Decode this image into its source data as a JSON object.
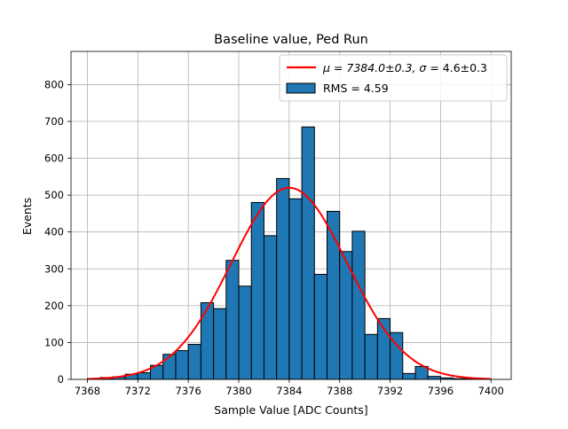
{
  "chart_data": {
    "type": "bar",
    "title": "Baseline value, Ped Run",
    "xlabel": "Sample Value [ADC Counts]",
    "ylabel": "Events",
    "xlim": [
      7366.7,
      7401.6
    ],
    "ylim": [
      0,
      890
    ],
    "x_ticks": [
      "7368",
      "7372",
      "7376",
      "7380",
      "7384",
      "7388",
      "7392",
      "7396",
      "7400"
    ],
    "y_ticks": [
      "0",
      "100",
      "200",
      "300",
      "400",
      "500",
      "600",
      "700",
      "800"
    ],
    "grid": true,
    "legend_position": "top-right",
    "histogram": {
      "name": "RMS = 4.59",
      "bin_edges": [
        7368,
        7369,
        7370,
        7371,
        7372,
        7373,
        7374,
        7375,
        7376,
        7377,
        7378,
        7379,
        7380,
        7381,
        7382,
        7383,
        7384,
        7385,
        7386,
        7387,
        7388,
        7389,
        7390,
        7391,
        7392,
        7393,
        7394,
        7395,
        7396,
        7397,
        7398,
        7399,
        7400
      ],
      "values": [
        2,
        5,
        7,
        14,
        18,
        38,
        68,
        78,
        95,
        208,
        192,
        323,
        253,
        480,
        390,
        545,
        490,
        685,
        285,
        456,
        347,
        402,
        122,
        165,
        127,
        16,
        35,
        8,
        4,
        2,
        1,
        1
      ],
      "color": "#1f77b4"
    },
    "fit": {
      "name_prefix": "μ = 7384.0±0.3, ",
      "name_sigma": "σ",
      "name_suffix": " = 4.6±0.3",
      "mu": 7384.0,
      "sigma": 4.6,
      "amplitude": 520,
      "x_range": [
        7368,
        7400
      ],
      "color": "#ff0000"
    }
  }
}
